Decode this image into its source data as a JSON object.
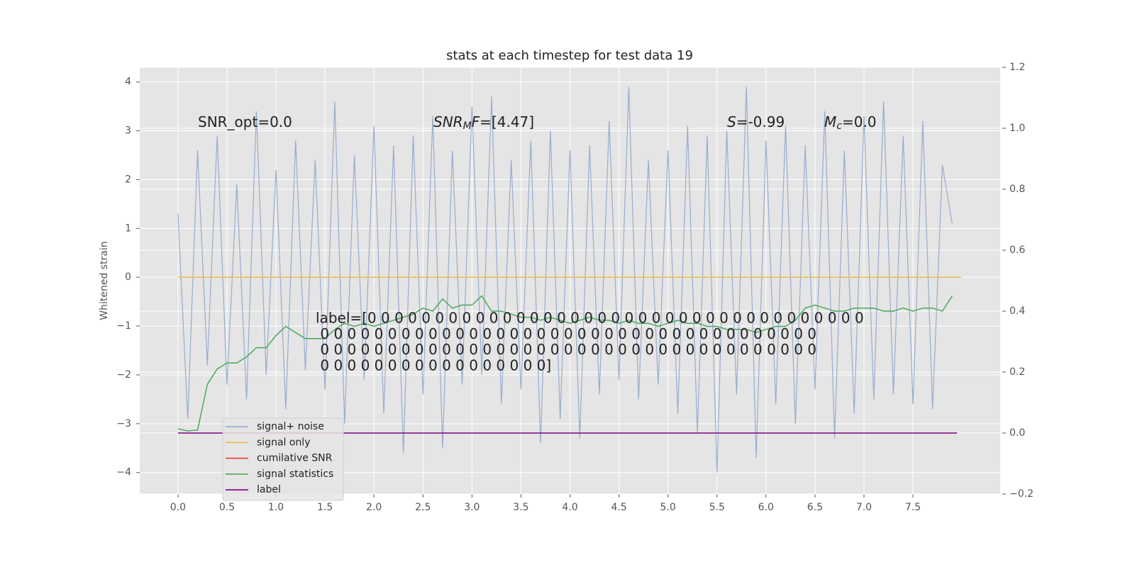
{
  "chart_data": {
    "type": "line",
    "title": "stats at each timestep for test data 19",
    "y_label": "Whitened strain",
    "grid": true,
    "legend": "lower left",
    "xlim": [
      -0.39,
      8.39
    ],
    "ylim": [
      -4.44,
      4.3
    ],
    "y2lim": [
      -0.2,
      1.2
    ],
    "xticks": [
      {
        "value": 0,
        "label": "0.0"
      },
      {
        "value": 0.5,
        "label": "0.5"
      },
      {
        "value": 1,
        "label": "1.0"
      },
      {
        "value": 1.5,
        "label": "1.5"
      },
      {
        "value": 2,
        "label": "2.0"
      },
      {
        "value": 2.5,
        "label": "2.5"
      },
      {
        "value": 3,
        "label": "3.0"
      },
      {
        "value": 3.5,
        "label": "3.5"
      },
      {
        "value": 4,
        "label": "4.0"
      },
      {
        "value": 4.5,
        "label": "4.5"
      },
      {
        "value": 5,
        "label": "5.0"
      },
      {
        "value": 5.5,
        "label": "5.5"
      },
      {
        "value": 6,
        "label": "6.0"
      },
      {
        "value": 6.5,
        "label": "6.5"
      },
      {
        "value": 7,
        "label": "7.0"
      },
      {
        "value": 7.5,
        "label": "7.5"
      }
    ],
    "yticks": [
      {
        "value": -4,
        "label": "−4"
      },
      {
        "value": -3,
        "label": "−3"
      },
      {
        "value": -2,
        "label": "−2"
      },
      {
        "value": -1,
        "label": "−1"
      },
      0,
      1,
      2,
      3,
      4
    ],
    "y2ticks": [
      {
        "value": -0.2,
        "label": "−0.2"
      },
      {
        "value": 0,
        "label": "0.0"
      },
      0.2,
      0.4,
      0.6,
      0.8,
      {
        "value": 1,
        "label": "1.0"
      },
      1.2
    ],
    "series": [
      {
        "name": "signal+ noise",
        "color": "#8fa5cc",
        "x": [
          0.0,
          0.1,
          0.2,
          0.3,
          0.4,
          0.5,
          0.6,
          0.7,
          0.8,
          0.9,
          1.0,
          1.1,
          1.2,
          1.3,
          1.4,
          1.5,
          1.6,
          1.7,
          1.8,
          1.9,
          2.0,
          2.1,
          2.2,
          2.3,
          2.4,
          2.5,
          2.6,
          2.7,
          2.8,
          2.9,
          3.0,
          3.1,
          3.2,
          3.3,
          3.4,
          3.5,
          3.6,
          3.7,
          3.8,
          3.9,
          4.0,
          4.1,
          4.2,
          4.3,
          4.4,
          4.5,
          4.6,
          4.7,
          4.8,
          4.9,
          5.0,
          5.1,
          5.2,
          5.3,
          5.4,
          5.5,
          5.6,
          5.7,
          5.8,
          5.9,
          6.0,
          6.1,
          6.2,
          6.3,
          6.4,
          6.5,
          6.6,
          6.7,
          6.8,
          6.9,
          7.0,
          7.1,
          7.2,
          7.3,
          7.4,
          7.5,
          7.6,
          7.7,
          7.8,
          7.9
        ],
        "values": [
          1.3,
          -2.9,
          2.6,
          -1.8,
          2.9,
          -2.2,
          1.9,
          -2.5,
          3.4,
          -2.0,
          2.2,
          -2.7,
          2.8,
          -1.9,
          2.4,
          -2.3,
          3.6,
          -3.0,
          2.5,
          -2.1,
          3.1,
          -2.8,
          2.7,
          -3.6,
          2.9,
          -2.4,
          3.3,
          -3.5,
          2.6,
          -2.2,
          3.5,
          -2.0,
          3.7,
          -2.6,
          2.4,
          -2.3,
          2.8,
          -3.4,
          3.0,
          -2.9,
          2.6,
          -3.3,
          2.7,
          -2.4,
          3.2,
          -2.1,
          3.9,
          -2.5,
          2.4,
          -2.2,
          2.6,
          -2.8,
          3.1,
          -3.2,
          2.9,
          -4.0,
          3.0,
          -2.4,
          3.9,
          -3.7,
          2.8,
          -2.6,
          3.1,
          -3.0,
          2.7,
          -2.3,
          3.4,
          -3.3,
          2.6,
          -2.8,
          3.3,
          -2.5,
          3.6,
          -2.4,
          2.9,
          -2.6,
          3.2,
          -2.7,
          2.3,
          1.1
        ]
      },
      {
        "name": "signal only",
        "color": "#f0b94a",
        "x": [
          0.0,
          7.99
        ],
        "values": [
          0,
          0
        ]
      },
      {
        "name": "cumilative SNR",
        "color": "#e8402a",
        "x": [],
        "values": []
      },
      {
        "name": "signal statistics",
        "color": "#4aa95a",
        "axis": "y2",
        "x": [
          0.0,
          0.1,
          0.2,
          0.3,
          0.4,
          0.5,
          0.6,
          0.7,
          0.8,
          0.9,
          1.0,
          1.1,
          1.2,
          1.3,
          1.4,
          1.5,
          1.6,
          1.7,
          1.8,
          1.9,
          2.0,
          2.1,
          2.2,
          2.3,
          2.4,
          2.5,
          2.6,
          2.7,
          2.8,
          2.9,
          3.0,
          3.1,
          3.2,
          3.3,
          3.4,
          3.5,
          3.6,
          3.7,
          3.8,
          3.9,
          4.0,
          4.1,
          4.2,
          4.3,
          4.4,
          4.5,
          4.6,
          4.7,
          4.8,
          4.9,
          5.0,
          5.1,
          5.2,
          5.3,
          5.4,
          5.5,
          5.6,
          5.7,
          5.8,
          5.9,
          6.0,
          6.1,
          6.2,
          6.3,
          6.4,
          6.5,
          6.6,
          6.7,
          6.8,
          6.9,
          7.0,
          7.1,
          7.2,
          7.3,
          7.4,
          7.5,
          7.6,
          7.7,
          7.8,
          7.9
        ],
        "values": [
          0.014,
          0.007,
          0.01,
          0.16,
          0.21,
          0.23,
          0.23,
          0.25,
          0.28,
          0.28,
          0.32,
          0.35,
          0.33,
          0.31,
          0.31,
          0.31,
          0.34,
          0.36,
          0.35,
          0.36,
          0.35,
          0.36,
          0.37,
          0.38,
          0.39,
          0.41,
          0.4,
          0.44,
          0.41,
          0.42,
          0.42,
          0.45,
          0.4,
          0.4,
          0.39,
          0.38,
          0.38,
          0.37,
          0.38,
          0.37,
          0.36,
          0.37,
          0.38,
          0.37,
          0.37,
          0.36,
          0.37,
          0.36,
          0.36,
          0.35,
          0.36,
          0.37,
          0.36,
          0.36,
          0.35,
          0.35,
          0.34,
          0.34,
          0.34,
          0.33,
          0.34,
          0.35,
          0.35,
          0.37,
          0.41,
          0.42,
          0.41,
          0.4,
          0.4,
          0.41,
          0.41,
          0.41,
          0.4,
          0.4,
          0.41,
          0.4,
          0.41,
          0.41,
          0.4,
          0.45
        ]
      },
      {
        "name": "label",
        "color": "#800080",
        "axis": "y2",
        "x": [
          0.0,
          7.95
        ],
        "values": [
          0,
          0
        ]
      }
    ],
    "annotations": [
      {
        "parts": [
          {
            "text": "SNR_opt=0.0"
          }
        ]
      },
      {
        "parts": [
          {
            "text": "SNR",
            "style": "italic"
          },
          {
            "text": "M",
            "style": "italic-sub"
          },
          {
            "text": "F",
            "style": "italic"
          },
          {
            "text": "=[4.47]"
          }
        ]
      },
      {
        "parts": [
          {
            "text": "S",
            "style": "italic"
          },
          {
            "text": "=-0.99"
          }
        ]
      },
      {
        "parts": [
          {
            "text": "M",
            "style": "italic"
          },
          {
            "text": "c",
            "style": "italic-sub"
          },
          {
            "text": "=0.0"
          }
        ]
      }
    ],
    "label_text": [
      "label=[0 0 0 0 0 0 0 0 0 0 0 0 0 0 0 0 0 0 0 0 0 0 0 0 0 0 0 0 0 0 0 0 0 0 0 0 0",
      " 0 0 0 0 0 0 0 0 0 0 0 0 0 0 0 0 0 0 0 0 0 0 0 0 0 0 0 0 0 0 0 0 0 0 0 0 0",
      " 0 0 0 0 0 0 0 0 0 0 0 0 0 0 0 0 0 0 0 0 0 0 0 0 0 0 0 0 0 0 0 0 0 0 0 0 0",
      " 0 0 0 0 0 0 0 0 0 0 0 0 0 0 0 0 0]"
    ]
  }
}
